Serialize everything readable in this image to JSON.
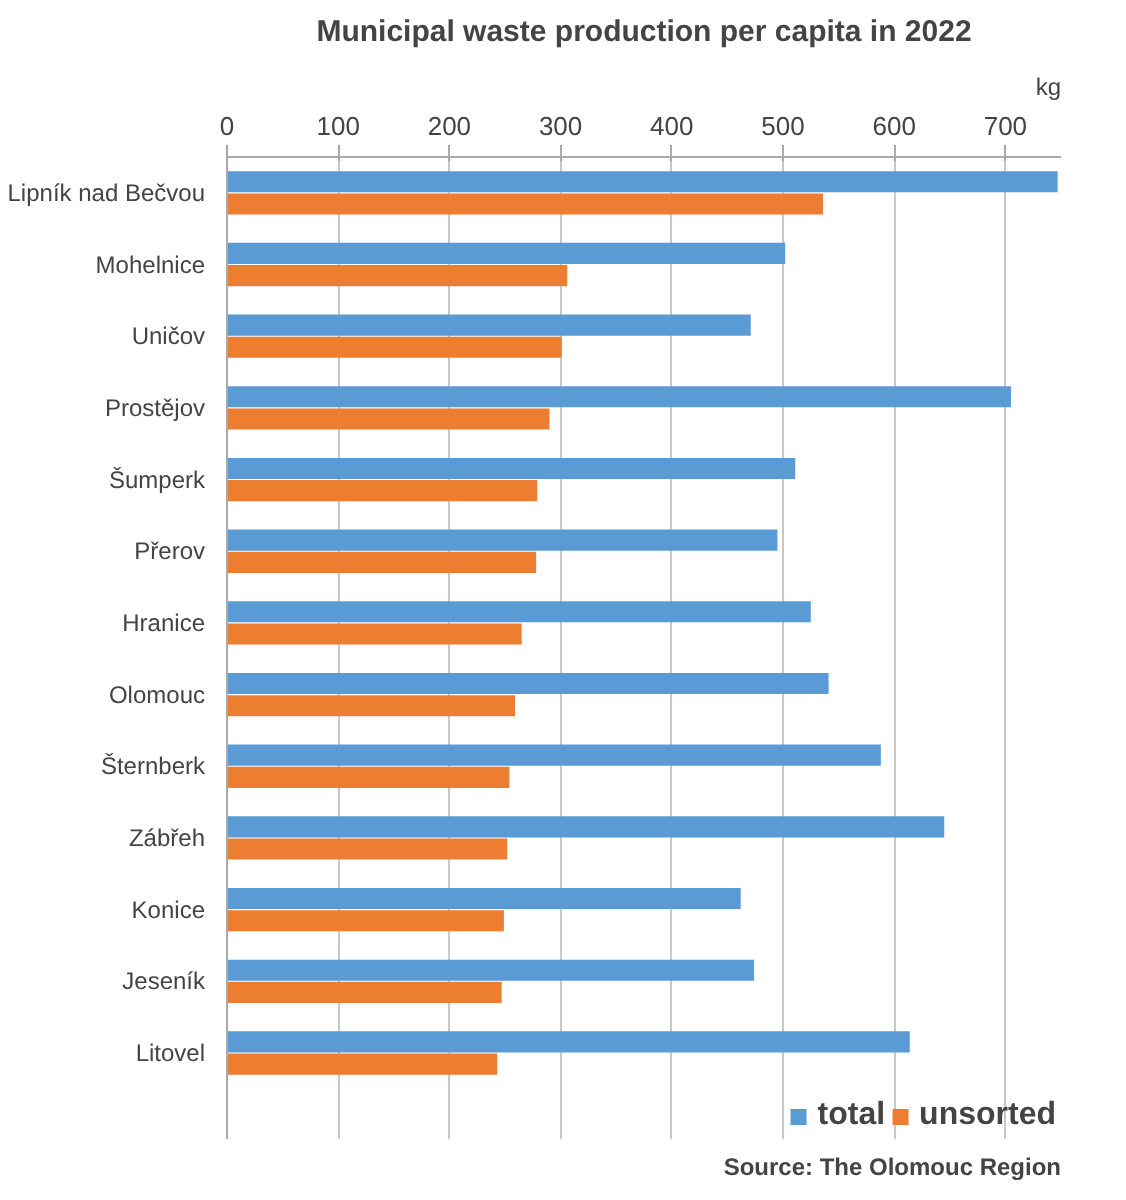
{
  "chart_data": {
    "type": "bar",
    "orientation": "horizontal",
    "title": "Municipal waste production per capita in 2022",
    "xlabel": "kg",
    "categories": [
      "Lipník nad Bečvou",
      "Mohelnice",
      "Uničov",
      "Prostějov",
      "Šumperk",
      "Přerov",
      "Hranice",
      "Olomouc",
      "Šternberk",
      "Zábřeh",
      "Konice",
      "Jeseník",
      "Litovel"
    ],
    "series": [
      {
        "name": "total",
        "color": "#5b9bd5",
        "values": [
          747,
          502,
          471,
          705,
          511,
          495,
          525,
          541,
          588,
          645,
          462,
          474,
          614
        ]
      },
      {
        "name": "unsorted",
        "color": "#ed7d31",
        "values": [
          536,
          306,
          301,
          290,
          279,
          278,
          265,
          259,
          254,
          252,
          249,
          247,
          243
        ]
      }
    ],
    "xlim": [
      0,
      750
    ],
    "xticks": [
      0,
      100,
      200,
      300,
      400,
      500,
      600,
      700
    ],
    "grid": "x",
    "legend": "bottom right",
    "annotations": [
      "Source: The Olomouc Region"
    ]
  }
}
